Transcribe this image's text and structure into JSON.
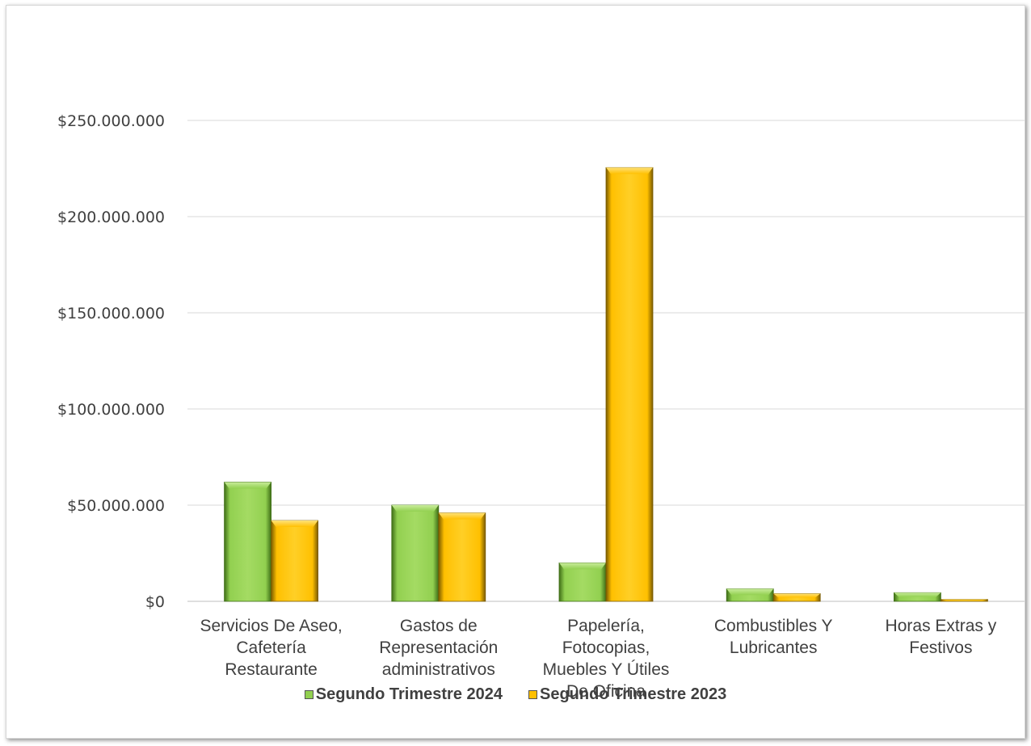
{
  "chart_data": {
    "type": "bar",
    "categories": [
      [
        "Servicios De Aseo,",
        "Cafetería",
        "Restaurante"
      ],
      [
        "Gastos de",
        "Representación",
        "administrativos"
      ],
      [
        "Papelería,",
        "Fotocopias,",
        "Muebles Y Útiles",
        "De Oficina"
      ],
      [
        "Combustibles Y",
        "Lubricantes"
      ],
      [
        "Horas Extras y",
        "Festivos"
      ]
    ],
    "series": [
      {
        "name": "Segundo Trimestre 2024",
        "color": "#92d050",
        "values": [
          62000000,
          50000000,
          20000000,
          6500000,
          4500000
        ]
      },
      {
        "name": "Segundo Trimestre 2023",
        "color": "#ffc000",
        "values": [
          42000000,
          46000000,
          225500000,
          4000000,
          1000000
        ]
      }
    ],
    "yticks": [
      "$0",
      "$50.000.000",
      "$100.000.000",
      "$150.000.000",
      "$200.000.000",
      "$250.000.000"
    ],
    "ylim": [
      0,
      250000000
    ],
    "grid": true,
    "legend_position": "bottom"
  }
}
